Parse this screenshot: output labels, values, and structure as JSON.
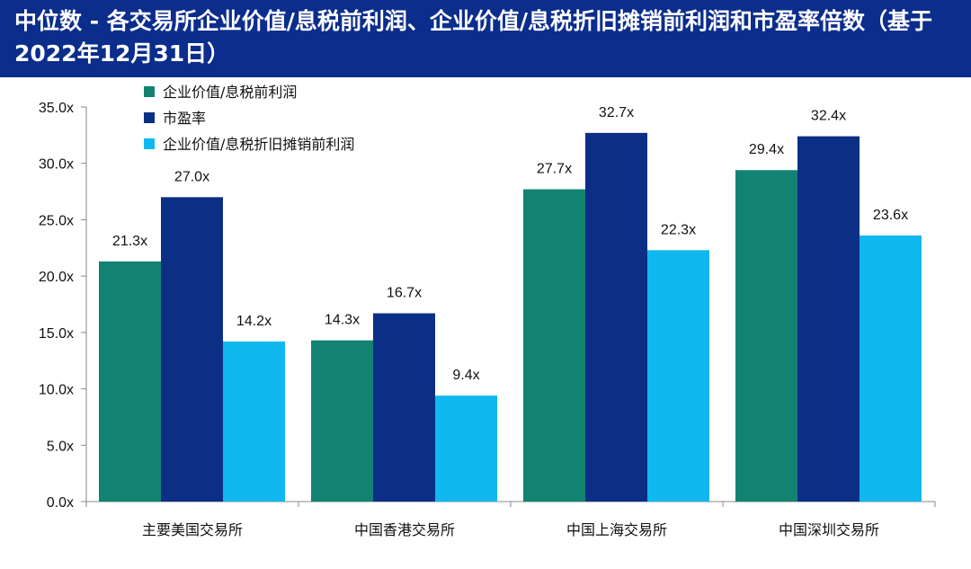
{
  "title": "中位数 - 各交易所企业价值/息税前利润、企业价值/息税折旧摊销前利润和市盈率倍数（基于2022年12月31日）",
  "chart_data": {
    "type": "bar",
    "categories": [
      "主要美国交易所",
      "中国香港交易所",
      "中国上海交易所",
      "中国深圳交易所"
    ],
    "series": [
      {
        "name": "企业价值/息税前利润",
        "color": "#128373",
        "values": [
          21.3,
          14.3,
          27.7,
          29.4
        ],
        "labels": [
          "21.3x",
          "14.3x",
          "27.7x",
          "29.4x"
        ]
      },
      {
        "name": "市盈率",
        "color": "#0c2f86",
        "values": [
          27.0,
          16.7,
          32.7,
          32.4
        ],
        "labels": [
          "27.0x",
          "16.7x",
          "32.7x",
          "32.4x"
        ]
      },
      {
        "name": "企业价值/息税折旧摊销前利润",
        "color": "#0fb8ee",
        "values": [
          14.2,
          9.4,
          22.3,
          23.6
        ],
        "labels": [
          "14.2x",
          "9.4x",
          "22.3x",
          "23.6x"
        ]
      }
    ],
    "ylim": [
      0,
      35
    ],
    "yticks": [
      0,
      5,
      10,
      15,
      20,
      25,
      30,
      35
    ],
    "ytick_labels": [
      "0.0x",
      "5.0x",
      "10.0x",
      "15.0x",
      "20.0x",
      "25.0x",
      "30.0x",
      "35.0x"
    ],
    "legend_position": "top-left",
    "grid": false
  }
}
